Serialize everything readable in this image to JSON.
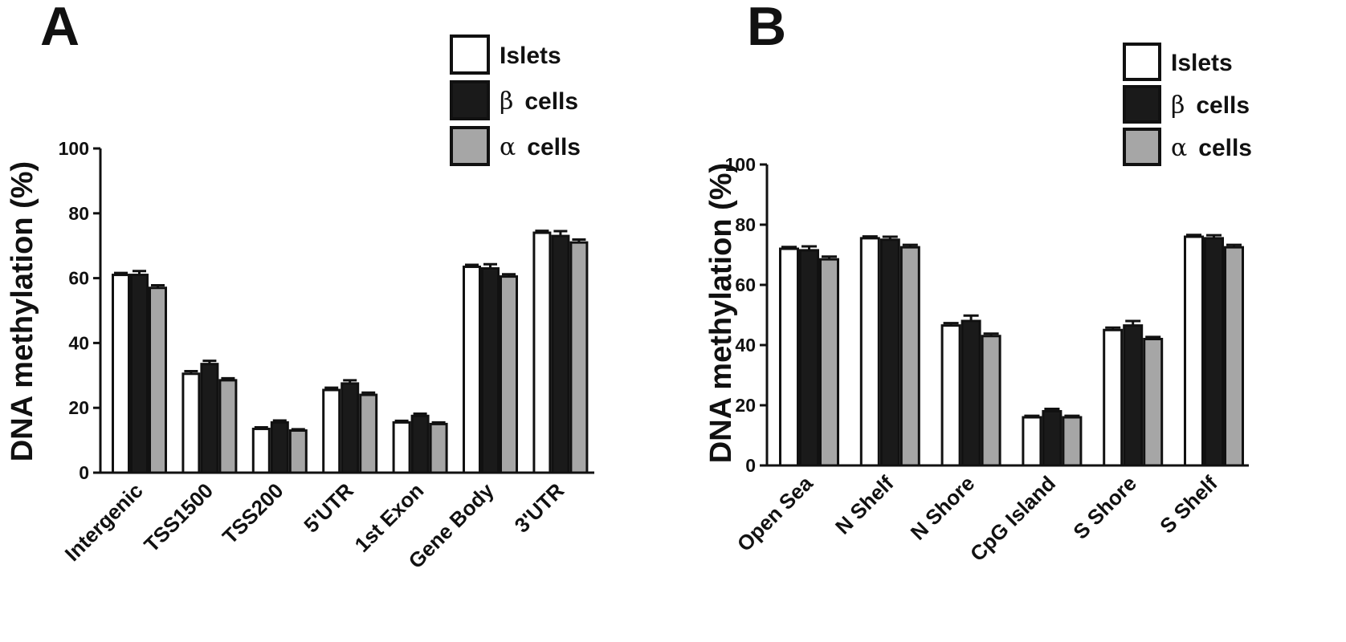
{
  "chart_data": [
    {
      "type": "bar",
      "panel": "A",
      "categories": [
        "Intergenic",
        "TSS1500",
        "TSS200",
        "5'UTR",
        "1st Exon",
        "Gene Body",
        "3'UTR"
      ],
      "series": [
        {
          "name": "Islets",
          "symbol": "",
          "color": "#ffffff",
          "values": [
            61,
            30.5,
            13.5,
            25.5,
            15.5,
            63.5,
            74
          ],
          "errors": [
            0.6,
            0.8,
            0.5,
            0.7,
            0.5,
            0.6,
            0.6
          ]
        },
        {
          "name": "cells",
          "symbol": "β",
          "color": "#1a1a1a",
          "values": [
            61,
            33.5,
            15.5,
            27.5,
            17.5,
            63,
            73
          ],
          "errors": [
            1.2,
            1.0,
            0.6,
            1.0,
            0.7,
            1.3,
            1.5
          ]
        },
        {
          "name": "cells",
          "symbol": "α",
          "color": "#a6a6a6",
          "values": [
            57,
            28.5,
            13,
            24,
            15,
            60.5,
            71
          ],
          "errors": [
            0.8,
            0.6,
            0.4,
            0.7,
            0.5,
            0.7,
            0.9
          ]
        }
      ],
      "ylabel": "DNA methylation (%)",
      "ylim": [
        0,
        100
      ],
      "yticks": [
        "0",
        "20",
        "40",
        "60",
        "80",
        "100"
      ],
      "legend": "top-right"
    },
    {
      "type": "bar",
      "panel": "B",
      "categories": [
        "Open Sea",
        "N Shelf",
        "N Shore",
        "CpG Island",
        "S Shore",
        "S Shelf"
      ],
      "series": [
        {
          "name": "Islets",
          "symbol": "",
          "color": "#ffffff",
          "values": [
            72,
            75.5,
            46.5,
            16,
            45,
            76
          ],
          "errors": [
            0.6,
            0.6,
            0.8,
            0.5,
            0.8,
            0.6
          ]
        },
        {
          "name": "cells",
          "symbol": "β",
          "color": "#1a1a1a",
          "values": [
            71.5,
            75,
            48,
            18,
            46.5,
            75.5
          ],
          "errors": [
            1.3,
            1.0,
            1.8,
            0.8,
            1.5,
            1.0
          ]
        },
        {
          "name": "cells",
          "symbol": "α",
          "color": "#a6a6a6",
          "values": [
            68.5,
            72.5,
            43,
            16,
            42,
            72.5
          ],
          "errors": [
            0.9,
            0.8,
            0.8,
            0.5,
            0.7,
            0.8
          ]
        }
      ],
      "ylabel": "DNA methylation (%)",
      "ylim": [
        0,
        100
      ],
      "yticks": [
        "0",
        "20",
        "40",
        "60",
        "80",
        "100"
      ],
      "legend": "top-right"
    }
  ]
}
